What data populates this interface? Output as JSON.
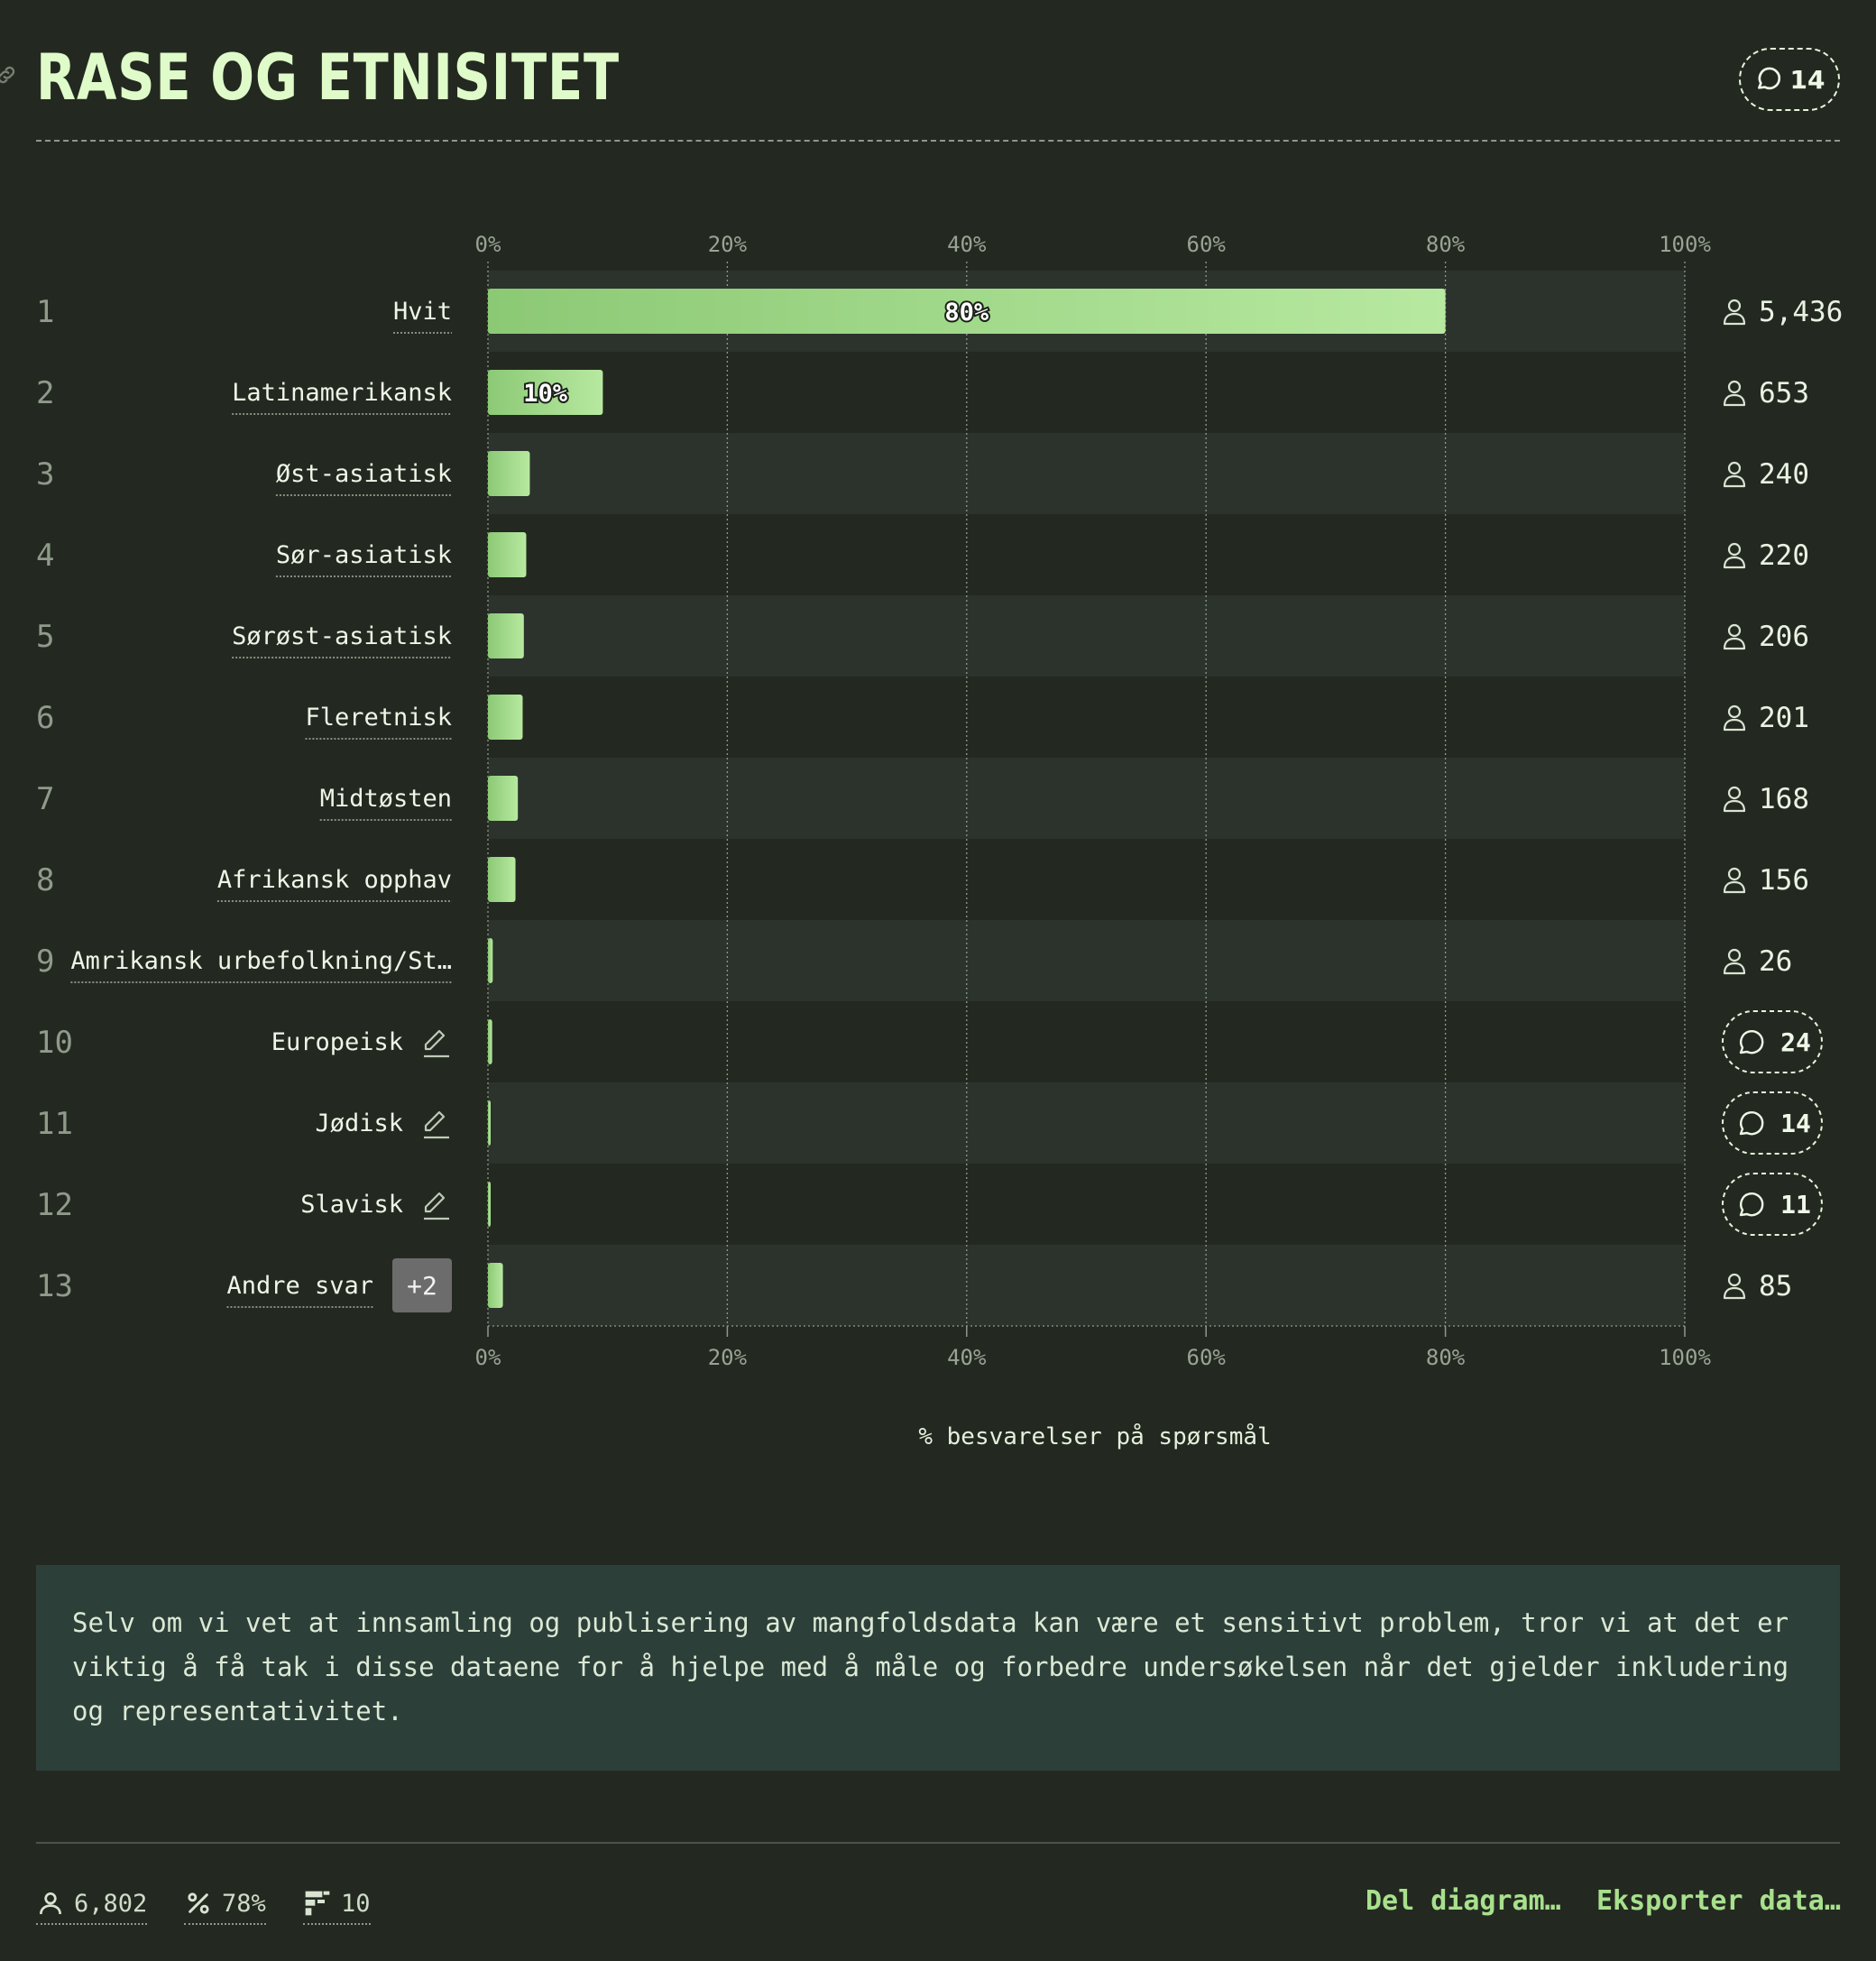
{
  "header": {
    "title": "RASE OG ETNISITET",
    "comment_count": "14"
  },
  "chart_data": {
    "type": "bar",
    "orientation": "horizontal",
    "xlabel": "% besvarelser på spørsmål",
    "xlim": [
      0,
      100
    ],
    "x_ticks": [
      "0%",
      "20%",
      "40%",
      "60%",
      "80%",
      "100%"
    ],
    "rows": [
      {
        "rank": "1",
        "label": "Hvit",
        "value": 80,
        "value_label": "80%",
        "count": "5,436",
        "kind": "count"
      },
      {
        "rank": "2",
        "label": "Latinamerikansk",
        "value": 9.6,
        "value_label": "10%",
        "count": "653",
        "kind": "count"
      },
      {
        "rank": "3",
        "label": "Øst-asiatisk",
        "value": 3.5,
        "value_label": "",
        "count": "240",
        "kind": "count"
      },
      {
        "rank": "4",
        "label": "Sør-asiatisk",
        "value": 3.2,
        "value_label": "",
        "count": "220",
        "kind": "count"
      },
      {
        "rank": "5",
        "label": "Sørøst-asiatisk",
        "value": 3.0,
        "value_label": "",
        "count": "206",
        "kind": "count"
      },
      {
        "rank": "6",
        "label": "Fleretnisk",
        "value": 2.9,
        "value_label": "",
        "count": "201",
        "kind": "count"
      },
      {
        "rank": "7",
        "label": "Midtøsten",
        "value": 2.5,
        "value_label": "",
        "count": "168",
        "kind": "count"
      },
      {
        "rank": "8",
        "label": "Afrikansk opphav",
        "value": 2.3,
        "value_label": "",
        "count": "156",
        "kind": "count"
      },
      {
        "rank": "9",
        "label": "Amrikansk urbefolkning/St…",
        "value": 0.4,
        "value_label": "",
        "count": "26",
        "kind": "count"
      },
      {
        "rank": "10",
        "label": "Europeisk",
        "value": 0.35,
        "value_label": "",
        "count": "24",
        "kind": "comments"
      },
      {
        "rank": "11",
        "label": "Jødisk",
        "value": 0.2,
        "value_label": "",
        "count": "14",
        "kind": "comments"
      },
      {
        "rank": "12",
        "label": "Slavisk",
        "value": 0.15,
        "value_label": "",
        "count": "11",
        "kind": "comments"
      },
      {
        "rank": "13",
        "label": "Andre svar",
        "value": 1.25,
        "value_label": "",
        "count": "85",
        "kind": "count",
        "badge": "+2"
      }
    ],
    "grid": true,
    "colors": {
      "bar_start": "#8fcb77",
      "bar_end": "#b6e89e",
      "band": "#2b332c",
      "grid": "#8e9a88"
    }
  },
  "note": "Selv om vi vet at innsamling og publisering av mangfoldsdata kan være et sensitivt problem, tror vi at det er viktig å få tak i disse dataene for å hjelpe med å måle og forbedre undersøkelsen når det gjelder inkludering og representativitet.",
  "footer": {
    "respondents": "6,802",
    "percent": "78%",
    "questions": "10",
    "share_label": "Del diagram…",
    "export_label": "Eksporter data…"
  },
  "icons": {
    "user": "user-icon",
    "percent": "percent-icon",
    "chart": "chart-icon",
    "comment": "comment-icon",
    "edit": "edit-icon",
    "link": "link-icon"
  }
}
